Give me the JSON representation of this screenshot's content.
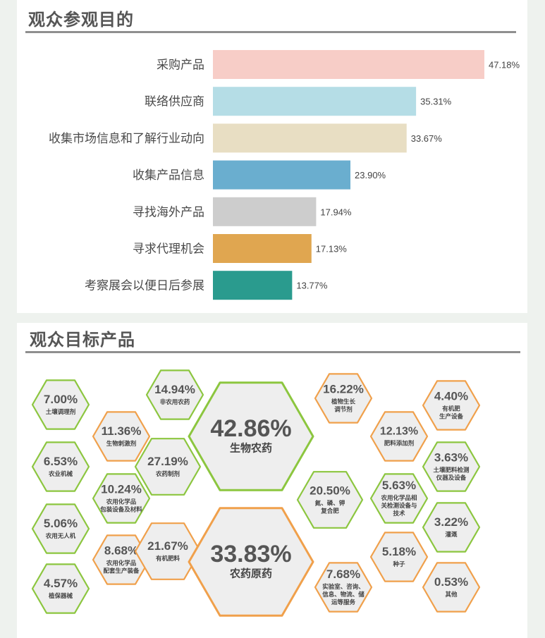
{
  "purpose_section": {
    "title": "观众参观目的"
  },
  "products_section": {
    "title": "观众目标产品"
  },
  "chart_data": [
    {
      "type": "bar",
      "orientation": "horizontal",
      "title": "观众参观目的",
      "categories": [
        "采购产品",
        "联络供应商",
        "收集市场信息和了解行业动向",
        "收集产品信息",
        "寻找海外产品",
        "寻求代理机会",
        "考察展会以便日后参展"
      ],
      "values": [
        47.18,
        35.31,
        33.67,
        23.9,
        17.94,
        17.13,
        13.77
      ],
      "value_labels": [
        "47.18%",
        "35.31%",
        "33.67%",
        "23.90%",
        "17.94%",
        "17.13%",
        "13.77%"
      ],
      "colors": [
        "#f7cdc7",
        "#b5dde6",
        "#e8dec3",
        "#6aaecf",
        "#cdcdcd",
        "#e0a650",
        "#2a9b8e"
      ],
      "xlim": [
        0,
        50
      ],
      "grid": false
    },
    {
      "type": "table",
      "title": "观众目标产品",
      "items": [
        {
          "value": "7.00%",
          "label": [
            "土壤调理剂"
          ]
        },
        {
          "value": "14.94%",
          "label": [
            "非农用农药"
          ]
        },
        {
          "value": "11.36%",
          "label": [
            "生物刺激剂"
          ]
        },
        {
          "value": "42.86%",
          "label": [
            "生物农药"
          ]
        },
        {
          "value": "16.22%",
          "label": [
            "植物生长",
            "调节剂"
          ]
        },
        {
          "value": "4.40%",
          "label": [
            "有机肥",
            "生产设备"
          ]
        },
        {
          "value": "12.13%",
          "label": [
            "肥料添加剂"
          ]
        },
        {
          "value": "6.53%",
          "label": [
            "农业机械"
          ]
        },
        {
          "value": "27.19%",
          "label": [
            "农药制剂"
          ]
        },
        {
          "value": "3.63%",
          "label": [
            "土壤肥料检测",
            "仪器及设备"
          ]
        },
        {
          "value": "10.24%",
          "label": [
            "农用化学品",
            "包装设备及材料"
          ]
        },
        {
          "value": "20.50%",
          "label": [
            "氮、磷、钾",
            "复合肥"
          ]
        },
        {
          "value": "5.63%",
          "label": [
            "农用化学品相",
            "关检测设备与",
            "技术"
          ]
        },
        {
          "value": "5.06%",
          "label": [
            "农用无人机"
          ]
        },
        {
          "value": "3.22%",
          "label": [
            "灌溉"
          ]
        },
        {
          "value": "8.68%",
          "label": [
            "农用化学品",
            "配套生产装备"
          ]
        },
        {
          "value": "21.67%",
          "label": [
            "有机肥料"
          ]
        },
        {
          "value": "33.83%",
          "label": [
            "农药原药"
          ]
        },
        {
          "value": "5.18%",
          "label": [
            "种子"
          ]
        },
        {
          "value": "4.57%",
          "label": [
            "植保器械"
          ]
        },
        {
          "value": "7.68%",
          "label": [
            "实验室、咨询、",
            "信息、物流、储",
            "运等服务"
          ]
        },
        {
          "value": "0.53%",
          "label": [
            "其他"
          ]
        }
      ],
      "colors": {
        "hex_fill": "#eeeeee",
        "border_green": "#8cc63f",
        "border_orange": "#f0a04b"
      }
    }
  ]
}
